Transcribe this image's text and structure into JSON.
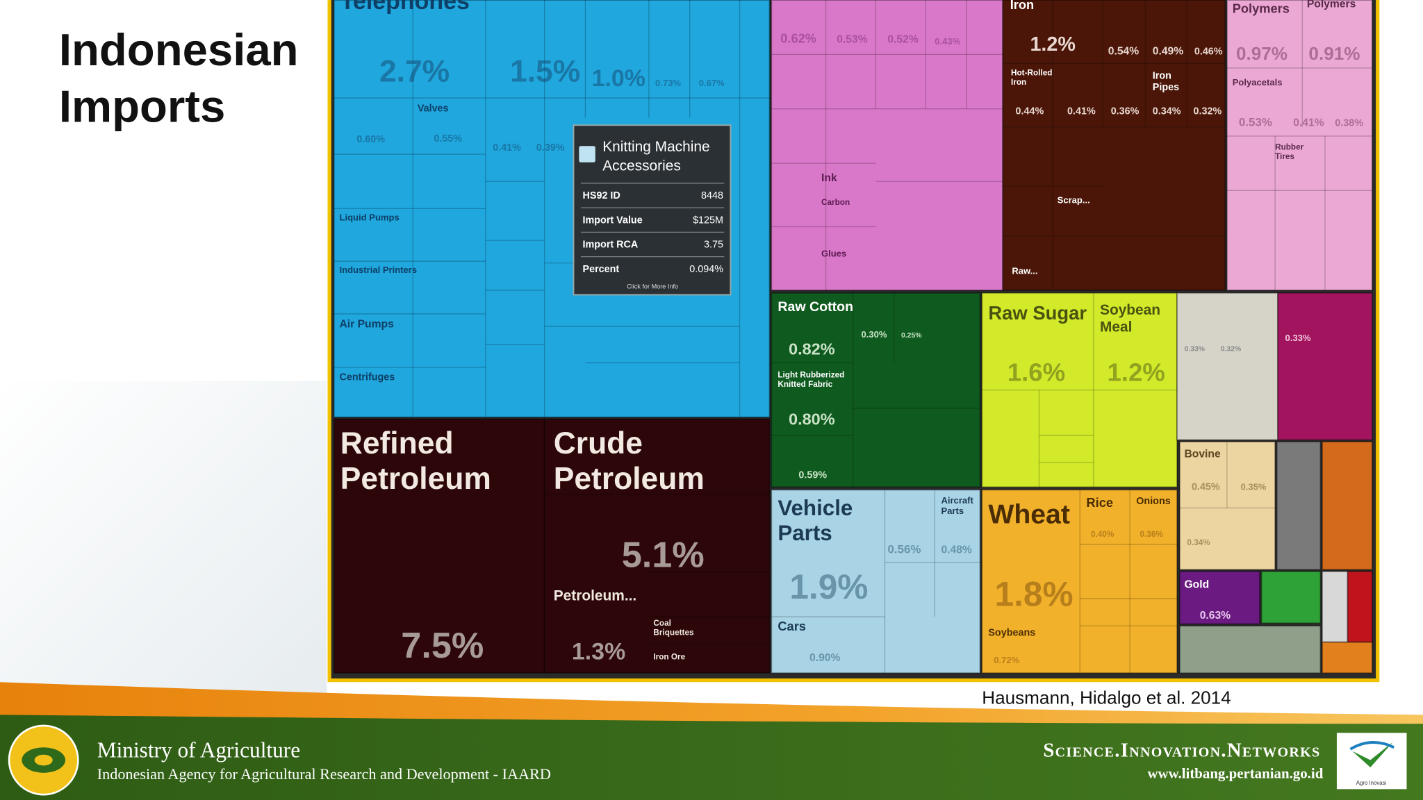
{
  "title": "Indonesian Imports",
  "treemap": {
    "labels": [
      "Telephones",
      "2.7%",
      "1.5%",
      "1.0%",
      "0.73%",
      "0.67%",
      "Valves",
      "0.60%",
      "0.55%",
      "0.41%",
      "0.39%",
      "Liquid Pumps",
      "Industrial Printers",
      "Air Pumps",
      "Centrifuges",
      "Refined Petroleum",
      "7.5%",
      "Crude Petroleum",
      "5.1%",
      "Petroleum...",
      "1.3%",
      "Coal Briquettes",
      "Iron Ore",
      "0.62%",
      "0.53%",
      "0.52%",
      "0.43%",
      "Ink",
      "Carbon",
      "Glues",
      "Iron",
      "1.2%",
      "0.54%",
      "0.49%",
      "0.46%",
      "Hot-Rolled Iron",
      "Iron Pipes",
      "0.44%",
      "0.41%",
      "0.36%",
      "0.34%",
      "0.32%",
      "Scrap...",
      "Raw...",
      "Polymers",
      "Polymers",
      "0.97%",
      "0.91%",
      "Polyacetals",
      "Rubber Tires",
      "0.53%",
      "0.41%",
      "0.38%",
      "Raw Cotton",
      "0.82%",
      "Light Rubberized Knitted Fabric",
      "0.80%",
      "0.59%",
      "0.30%",
      "0.25%",
      "Raw Sugar",
      "Soybean Meal",
      "1.6%",
      "1.2%",
      "0.33%",
      "0.32%",
      "0.33%",
      "Vehicle Parts",
      "1.9%",
      "Aircraft Parts",
      "0.56%",
      "0.48%",
      "Cars",
      "0.90%",
      "Wheat",
      "1.8%",
      "Soybeans",
      "0.72%",
      "Rice",
      "Onions",
      "0.40%",
      "0.36%",
      "Bovine",
      "0.45%",
      "0.35%",
      "0.34%",
      "Gold",
      "0.63%"
    ],
    "tooltip": {
      "title": "Knitting Machine Accessories",
      "rows": [
        [
          "HS92 ID",
          "8448"
        ],
        [
          "Import Value",
          "$125M"
        ],
        [
          "Import RCA",
          "3.75"
        ],
        [
          "Percent",
          "0.094%"
        ]
      ],
      "note": "Click for More Info"
    }
  },
  "citation": "Hausmann, Hidalgo et al. 2014",
  "footer": {
    "organization": "Ministry of Agriculture",
    "agency": "Indonesian Agency for Agricultural Research and Development - IAARD",
    "tagline": "Science.Innovation.Networks",
    "website": "www.litbang.pertanian.go.id",
    "logo_text": "Agro Inovasi"
  }
}
